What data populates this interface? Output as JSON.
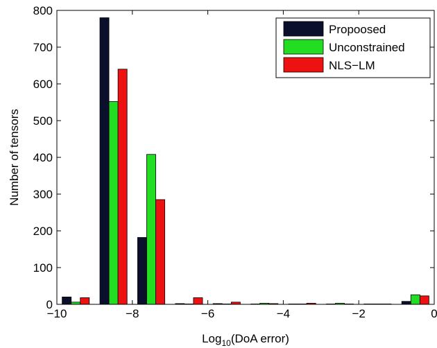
{
  "chart_data": {
    "type": "bar",
    "xlabel_main": "Log",
    "xlabel_sub": "10",
    "xlabel_rest": "(DoA error)",
    "ylabel": "Number of tensors",
    "xlim": [
      -10,
      0
    ],
    "ylim": [
      0,
      800
    ],
    "xticks": [
      "−10",
      "−8",
      "−6",
      "−4",
      "−2",
      "0"
    ],
    "yticks": [
      "0",
      "100",
      "200",
      "300",
      "400",
      "500",
      "600",
      "700",
      "800"
    ],
    "grid": false,
    "legend_position": "top-right",
    "bin_centers": [
      -9.5,
      -8.5,
      -7.5,
      -6.5,
      -5.5,
      -4.5,
      -3.5,
      -2.5,
      -1.5,
      -0.5
    ],
    "series": [
      {
        "name": "Propoosed",
        "color": "#0a0f2c",
        "values": [
          20,
          780,
          182,
          2,
          2,
          1,
          1,
          1,
          1,
          8
        ]
      },
      {
        "name": "Unconstrained",
        "color": "#22dd22",
        "values": [
          6,
          552,
          408,
          1,
          1,
          3,
          1,
          3,
          1,
          26
        ]
      },
      {
        "name": "NLS−LM",
        "color": "#ee1111",
        "values": [
          18,
          640,
          285,
          18,
          6,
          2,
          3,
          1,
          1,
          23
        ]
      }
    ]
  }
}
